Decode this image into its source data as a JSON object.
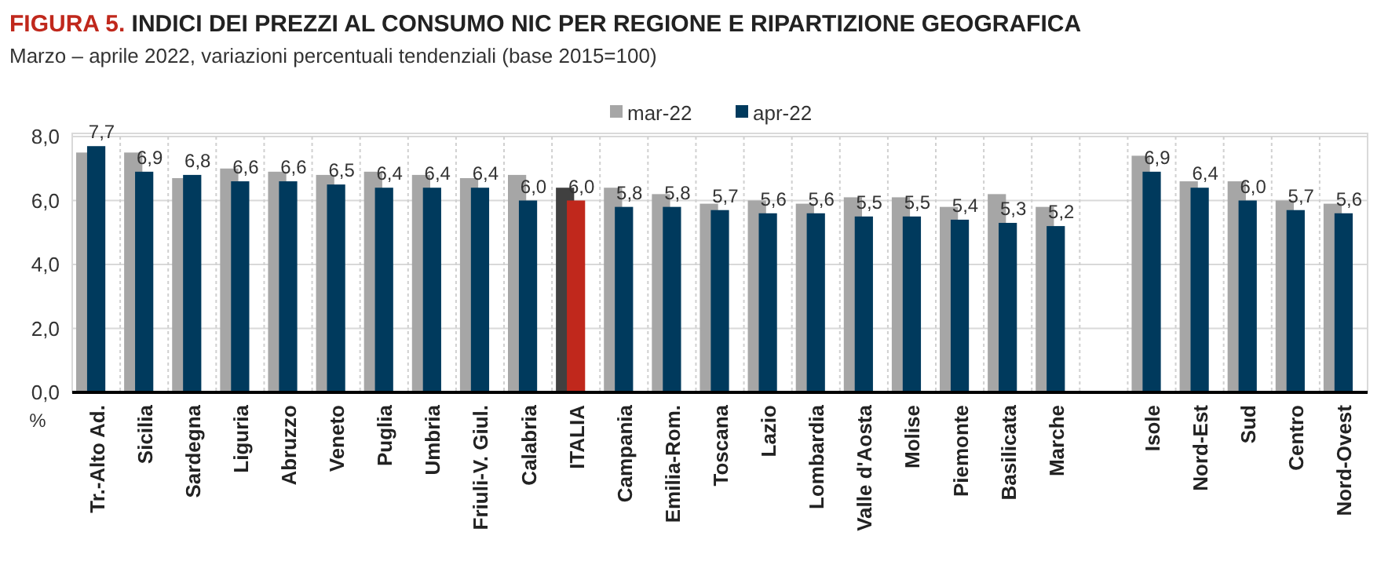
{
  "chart_data": {
    "type": "bar",
    "title": "FIGURA 5. INDICI DEI PREZZI AL CONSUMO NIC PER REGIONE E RIPARTIZIONE GEOGRAFICA",
    "subtitle": "Marzo – aprile 2022, variazioni percentuali tendenziali (base 2015=100)",
    "ylabel": "%",
    "categories": [
      "Tr.-Alto Ad.",
      "Sicilia",
      "Sardegna",
      "Liguria",
      "Abruzzo",
      "Veneto",
      "Puglia",
      "Umbria",
      "Friuli-V. Giul.",
      "Calabria",
      "ITALIA",
      "Campania",
      "Emilia-Rom.",
      "Toscana",
      "Lazio",
      "Lombardia",
      "Valle d'Aosta",
      "Molise",
      "Piemonte",
      "Basilicata",
      "Marche",
      null,
      "Isole",
      "Nord-Est",
      "Sud",
      "Centro",
      "Nord-Ovest"
    ],
    "series": [
      {
        "name": "mar-22",
        "color": "#a6a6a6",
        "colors": [
          "#a6a6a6",
          "#a6a6a6",
          "#a6a6a6",
          "#a6a6a6",
          "#a6a6a6",
          "#a6a6a6",
          "#a6a6a6",
          "#a6a6a6",
          "#a6a6a6",
          "#a6a6a6",
          "#404040",
          "#a6a6a6",
          "#a6a6a6",
          "#a6a6a6",
          "#a6a6a6",
          "#a6a6a6",
          "#a6a6a6",
          "#a6a6a6",
          "#a6a6a6",
          "#a6a6a6",
          "#a6a6a6",
          null,
          "#a6a6a6",
          "#a6a6a6",
          "#a6a6a6",
          "#a6a6a6",
          "#a6a6a6"
        ],
        "values": [
          7.5,
          7.5,
          6.7,
          7.0,
          6.9,
          6.8,
          6.9,
          6.8,
          6.7,
          6.8,
          6.4,
          6.4,
          6.2,
          5.9,
          6.0,
          5.9,
          6.1,
          6.1,
          5.8,
          6.2,
          5.8,
          null,
          7.4,
          6.6,
          6.6,
          6.0,
          5.9
        ]
      },
      {
        "name": "apr-22",
        "color": "#003a5d",
        "colors": [
          "#003a5d",
          "#003a5d",
          "#003a5d",
          "#003a5d",
          "#003a5d",
          "#003a5d",
          "#003a5d",
          "#003a5d",
          "#003a5d",
          "#003a5d",
          "#c0281c",
          "#003a5d",
          "#003a5d",
          "#003a5d",
          "#003a5d",
          "#003a5d",
          "#003a5d",
          "#003a5d",
          "#003a5d",
          "#003a5d",
          "#003a5d",
          null,
          "#003a5d",
          "#003a5d",
          "#003a5d",
          "#003a5d",
          "#003a5d"
        ],
        "values": [
          7.7,
          6.9,
          6.8,
          6.6,
          6.6,
          6.5,
          6.4,
          6.4,
          6.4,
          6.0,
          6.0,
          5.8,
          5.8,
          5.7,
          5.6,
          5.6,
          5.5,
          5.5,
          5.4,
          5.3,
          5.2,
          null,
          6.9,
          6.4,
          6.0,
          5.7,
          5.6
        ],
        "value_labels": [
          "7,7",
          "6,9",
          "6,8",
          "6,6",
          "6,6",
          "6,5",
          "6,4",
          "6,4",
          "6,4",
          "6,0",
          "6,0",
          "5,8",
          "5,8",
          "5,7",
          "5,6",
          "5,6",
          "5,5",
          "5,5",
          "5,4",
          "5,3",
          "5,2",
          null,
          "6,9",
          "6,4",
          "6,0",
          "5,7",
          "5,6"
        ]
      }
    ],
    "ylim": [
      0,
      8
    ],
    "yticks": [
      {
        "value": 0,
        "label": "0,0"
      },
      {
        "value": 2,
        "label": "2,0"
      },
      {
        "value": 4,
        "label": "4,0"
      },
      {
        "value": 6,
        "label": "6,0"
      },
      {
        "value": 8,
        "label": "8,0"
      }
    ],
    "grid": true,
    "legend": "top"
  }
}
